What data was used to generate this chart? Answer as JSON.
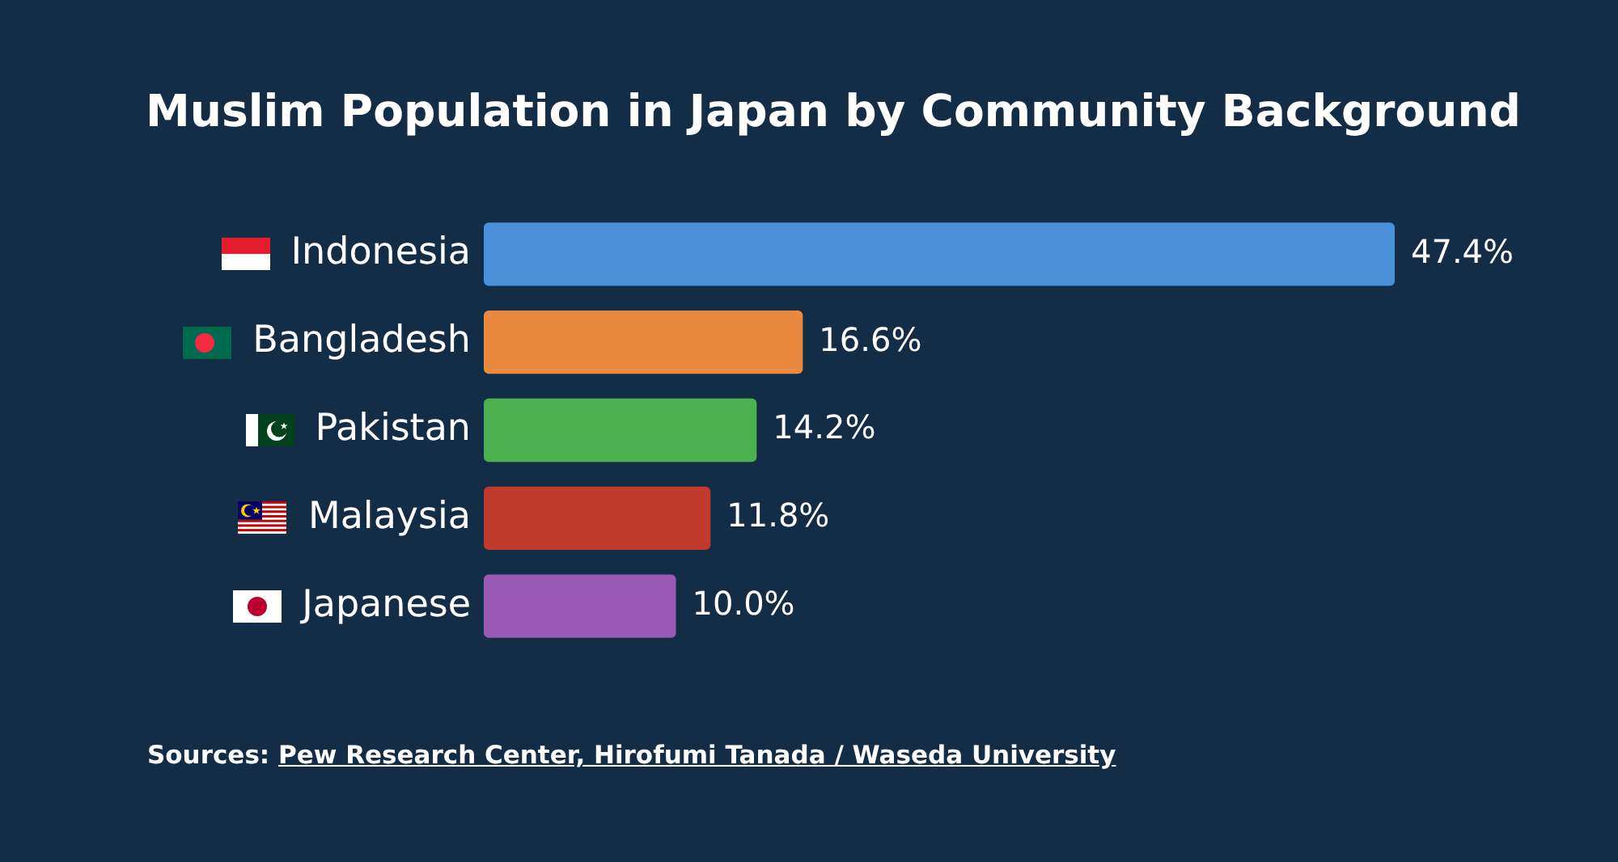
{
  "chart_data": {
    "type": "bar",
    "orientation": "horizontal",
    "title": "Muslim Population in Japan by Community Background",
    "categories": [
      "Indonesia",
      "Bangladesh",
      "Pakistan",
      "Malaysia",
      "Japanese"
    ],
    "values": [
      47.4,
      16.6,
      14.2,
      11.8,
      10.0
    ],
    "colors": [
      "#4a90d9",
      "#ea8a3f",
      "#4cb050",
      "#c0392b",
      "#9b59b6"
    ],
    "value_labels": [
      "47.4%",
      "16.6%",
      "14.2%",
      "11.8%",
      "10.0%"
    ],
    "tick_labels": "y",
    "annotations": [
      "Sources: Pew Research Center, Hirofumi Tanada / Waseda University"
    ]
  }
}
